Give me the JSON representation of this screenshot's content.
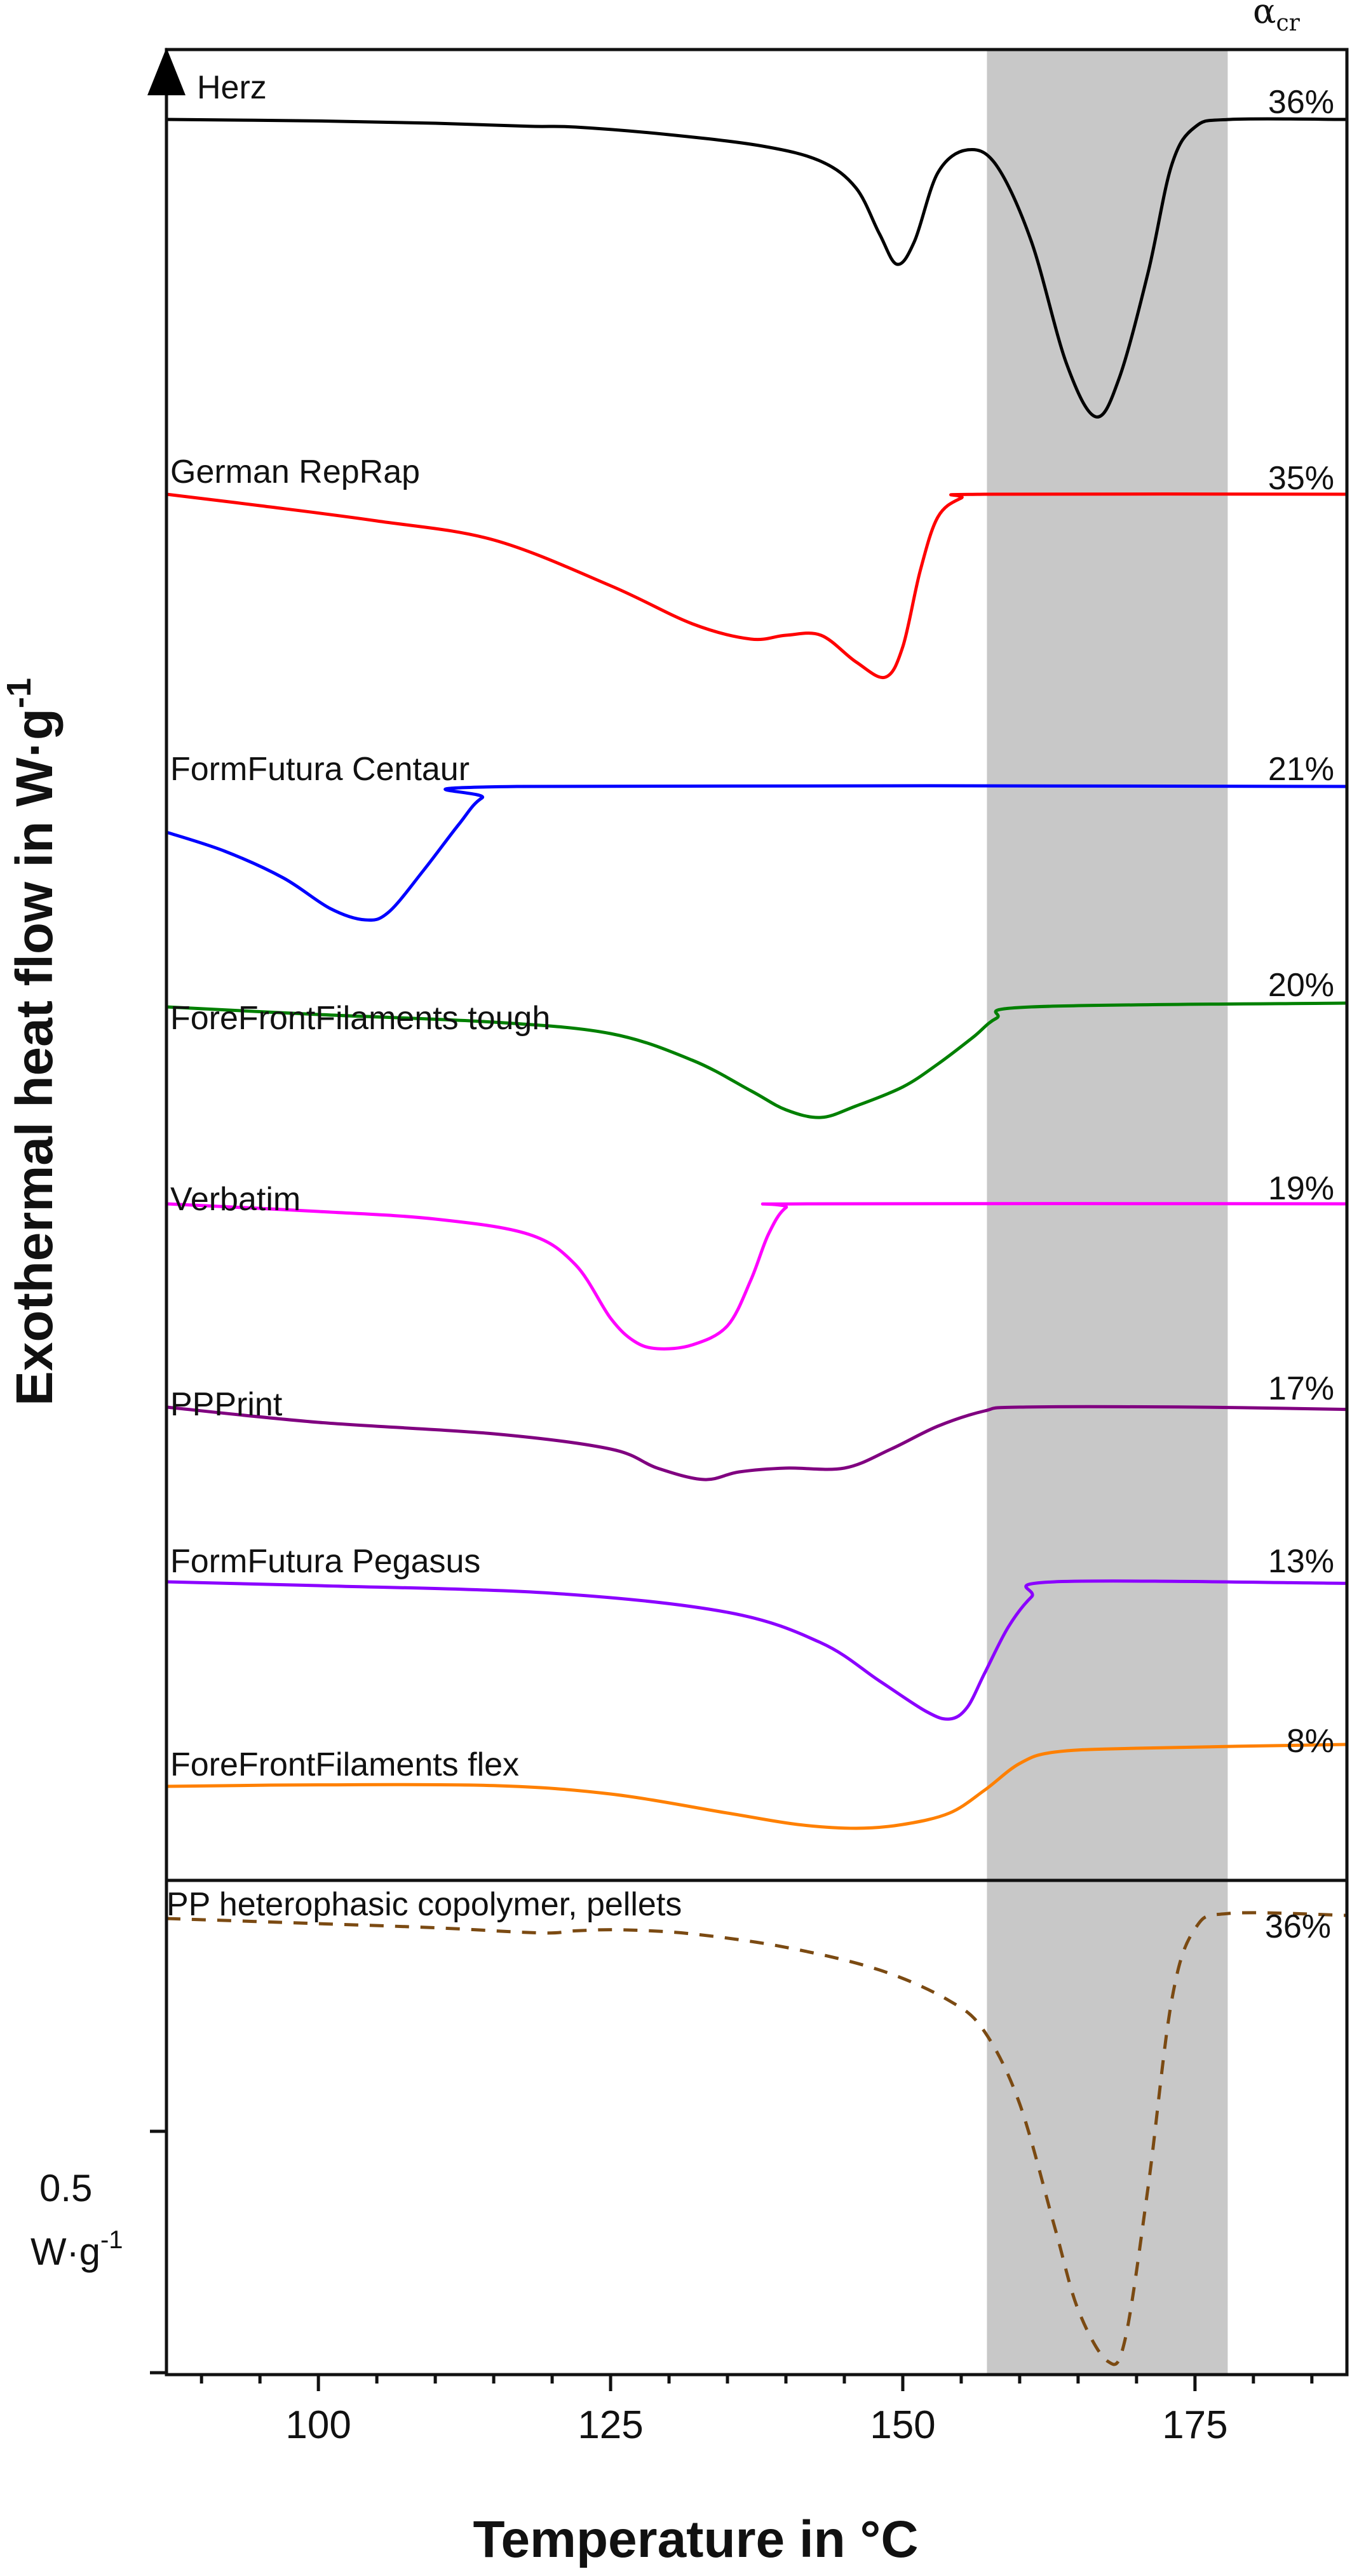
{
  "chart_data": {
    "type": "line",
    "title": "",
    "xlabel": "Temperature in °C",
    "ylabel": "Exothermal heat flow in W·g",
    "ylabel_sup": "-1",
    "xlim": [
      87,
      188
    ],
    "xticks": [
      100,
      125,
      150,
      175
    ],
    "x_tick_labels": [
      "100",
      "125",
      "150",
      "175"
    ],
    "shaded_region": {
      "from": 157.2,
      "to": 177.8,
      "color": "#c8c8c8"
    },
    "alpha_label": "α",
    "alpha_sub": "cr",
    "scale_bar": {
      "value": "0.5",
      "unit": "W·g",
      "unit_sup": "-1"
    },
    "series": [
      {
        "name": "Herz",
        "crystallinity": "36%",
        "color": "#000000",
        "dashed": false,
        "panel": "top",
        "points": [
          [
            87,
            0
          ],
          [
            100,
            -0.02
          ],
          [
            110,
            -0.05
          ],
          [
            118,
            -0.09
          ],
          [
            122,
            -0.1
          ],
          [
            130,
            -0.2
          ],
          [
            138,
            -0.35
          ],
          [
            143,
            -0.55
          ],
          [
            146,
            -0.9
          ],
          [
            148,
            -1.5
          ],
          [
            149.5,
            -1.9
          ],
          [
            151,
            -1.6
          ],
          [
            153,
            -0.7
          ],
          [
            155.5,
            -0.4
          ],
          [
            158,
            -0.6
          ],
          [
            161,
            -1.6
          ],
          [
            164,
            -3.2
          ],
          [
            166.5,
            -3.9
          ],
          [
            168.5,
            -3.4
          ],
          [
            171,
            -2.0
          ],
          [
            173,
            -0.6
          ],
          [
            175,
            -0.1
          ],
          [
            178,
            0
          ],
          [
            188,
            0
          ]
        ]
      },
      {
        "name": "German RepRap",
        "crystallinity": "35%",
        "color": "#ff0000",
        "dashed": false,
        "panel": "top",
        "points": [
          [
            87,
            0
          ],
          [
            95,
            -0.15
          ],
          [
            105,
            -0.35
          ],
          [
            115,
            -0.6
          ],
          [
            125,
            -1.2
          ],
          [
            132,
            -1.7
          ],
          [
            137,
            -1.9
          ],
          [
            140,
            -1.85
          ],
          [
            143,
            -1.85
          ],
          [
            146,
            -2.2
          ],
          [
            148.5,
            -2.4
          ],
          [
            150,
            -2.0
          ],
          [
            151.5,
            -1.0
          ],
          [
            153,
            -0.3
          ],
          [
            155,
            -0.05
          ],
          [
            157,
            0
          ],
          [
            188,
            0
          ]
        ]
      },
      {
        "name": "FormFutura Centaur",
        "crystallinity": "21%",
        "color": "#0000ff",
        "dashed": false,
        "panel": "top",
        "points": [
          [
            87,
            -0.6
          ],
          [
            92,
            -0.85
          ],
          [
            97,
            -1.2
          ],
          [
            101,
            -1.6
          ],
          [
            104,
            -1.75
          ],
          [
            106,
            -1.65
          ],
          [
            109,
            -1.1
          ],
          [
            112,
            -0.5
          ],
          [
            114,
            -0.15
          ],
          [
            117,
            0
          ],
          [
            188,
            0
          ]
        ]
      },
      {
        "name": "ForeFrontFilaments tough",
        "crystallinity": "20%",
        "color": "#008000",
        "dashed": false,
        "panel": "top",
        "points": [
          [
            87,
            0
          ],
          [
            100,
            -0.1
          ],
          [
            115,
            -0.2
          ],
          [
            125,
            -0.35
          ],
          [
            132,
            -0.7
          ],
          [
            137,
            -1.1
          ],
          [
            140,
            -1.35
          ],
          [
            143,
            -1.45
          ],
          [
            146,
            -1.3
          ],
          [
            150,
            -1.05
          ],
          [
            153,
            -0.75
          ],
          [
            156,
            -0.4
          ],
          [
            158,
            -0.15
          ],
          [
            161,
            0
          ],
          [
            188,
            0.05
          ]
        ]
      },
      {
        "name": "Verbatim",
        "crystallinity": "19%",
        "color": "#ff00ff",
        "dashed": false,
        "panel": "top",
        "points": [
          [
            87,
            0
          ],
          [
            100,
            -0.1
          ],
          [
            110,
            -0.2
          ],
          [
            118,
            -0.4
          ],
          [
            122,
            -0.8
          ],
          [
            125,
            -1.5
          ],
          [
            127,
            -1.8
          ],
          [
            129,
            -1.9
          ],
          [
            132,
            -1.85
          ],
          [
            135,
            -1.6
          ],
          [
            137,
            -1.0
          ],
          [
            138.5,
            -0.4
          ],
          [
            140,
            -0.05
          ],
          [
            142,
            0
          ],
          [
            188,
            0
          ]
        ]
      },
      {
        "name": "PPPrint",
        "crystallinity": "17%",
        "color": "#800080",
        "dashed": false,
        "panel": "top",
        "points": [
          [
            87,
            0
          ],
          [
            100,
            -0.2
          ],
          [
            115,
            -0.35
          ],
          [
            125,
            -0.55
          ],
          [
            129,
            -0.8
          ],
          [
            133,
            -0.95
          ],
          [
            136,
            -0.85
          ],
          [
            140,
            -0.8
          ],
          [
            145,
            -0.8
          ],
          [
            149,
            -0.55
          ],
          [
            153,
            -0.25
          ],
          [
            157,
            -0.05
          ],
          [
            160,
            0
          ],
          [
            175,
            0
          ],
          [
            188,
            -0.03
          ]
        ]
      },
      {
        "name": "FormFutura Pegasus",
        "crystallinity": "13%",
        "color": "#8b00ff",
        "dashed": false,
        "panel": "top",
        "points": [
          [
            87,
            0
          ],
          [
            100,
            -0.05
          ],
          [
            120,
            -0.15
          ],
          [
            135,
            -0.4
          ],
          [
            143,
            -0.8
          ],
          [
            148,
            -1.3
          ],
          [
            152,
            -1.7
          ],
          [
            154,
            -1.8
          ],
          [
            155.5,
            -1.65
          ],
          [
            157,
            -1.2
          ],
          [
            159,
            -0.6
          ],
          [
            161,
            -0.2
          ],
          [
            163,
            0
          ],
          [
            188,
            -0.02
          ]
        ]
      },
      {
        "name": "ForeFrontFilaments flex",
        "crystallinity": "8%",
        "color": "#ff8000",
        "dashed": false,
        "panel": "top",
        "points": [
          [
            87,
            0
          ],
          [
            100,
            0.02
          ],
          [
            115,
            0.01
          ],
          [
            125,
            -0.1
          ],
          [
            135,
            -0.35
          ],
          [
            141,
            -0.5
          ],
          [
            146,
            -0.55
          ],
          [
            150,
            -0.5
          ],
          [
            154,
            -0.35
          ],
          [
            157,
            -0.05
          ],
          [
            160,
            0.3
          ],
          [
            163,
            0.45
          ],
          [
            170,
            0.5
          ],
          [
            188,
            0.55
          ]
        ]
      },
      {
        "name": "PP heterophasic copolymer, pellets",
        "crystallinity": "36%",
        "color": "#7b4a12",
        "dashed": true,
        "panel": "bottom",
        "points": [
          [
            87,
            0
          ],
          [
            100,
            -0.05
          ],
          [
            110,
            -0.09
          ],
          [
            119,
            -0.14
          ],
          [
            122,
            -0.12
          ],
          [
            126,
            -0.11
          ],
          [
            132,
            -0.15
          ],
          [
            140,
            -0.28
          ],
          [
            148,
            -0.5
          ],
          [
            154,
            -0.8
          ],
          [
            157,
            -1.1
          ],
          [
            160,
            -1.8
          ],
          [
            163,
            -3.0
          ],
          [
            165,
            -3.8
          ],
          [
            167.5,
            -4.3
          ],
          [
            169,
            -4.1
          ],
          [
            171,
            -2.6
          ],
          [
            173,
            -0.8
          ],
          [
            175,
            -0.1
          ],
          [
            178,
            0.05
          ],
          [
            188,
            0.03
          ]
        ]
      }
    ]
  }
}
